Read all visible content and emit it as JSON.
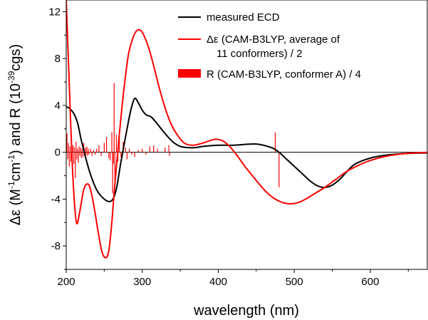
{
  "chart_data": {
    "type": "line",
    "title": "",
    "xlabel": "wavelength (nm)",
    "ylabel_parts": [
      "Δε (M",
      "-1",
      "cm",
      "-1",
      ") and R (10",
      "-39",
      "cgs)"
    ],
    "xlim": [
      200,
      675
    ],
    "ylim": [
      -10,
      13
    ],
    "x_ticks": [
      200,
      300,
      400,
      500,
      600
    ],
    "y_ticks": [
      -8,
      -4,
      0,
      4,
      8,
      12
    ],
    "grid": false,
    "legend_position": "top-right",
    "legend": [
      {
        "label": "measured ECD",
        "color": "#000000",
        "kind": "line"
      },
      {
        "label": "Δε (CAM-B3LYP, average of",
        "label2": "11 conformers) / 2",
        "color": "#ff0000",
        "kind": "line"
      },
      {
        "label": "R (CAM-B3LYP, conformer A) / 4",
        "color": "#ff0000",
        "kind": "bar"
      }
    ],
    "series": [
      {
        "name": "measured ECD",
        "color": "#000000",
        "x": [
          200,
          205,
          210,
          215,
          220,
          230,
          240,
          250,
          258,
          263,
          267,
          272,
          280,
          285,
          290,
          295,
          300,
          305,
          312,
          320,
          330,
          340,
          350,
          360,
          370,
          380,
          400,
          420,
          450,
          470,
          480,
          490,
          500,
          510,
          520,
          530,
          540,
          550,
          560,
          570,
          580,
          600,
          620,
          650,
          675
        ],
        "y": [
          3.9,
          3.7,
          3.3,
          2.5,
          1.0,
          -1.5,
          -3.2,
          -4.0,
          -4.2,
          -3.8,
          -2.8,
          -0.8,
          2.0,
          3.6,
          4.6,
          4.2,
          3.6,
          3.2,
          3.0,
          2.4,
          1.6,
          0.9,
          0.5,
          0.4,
          0.4,
          0.5,
          0.6,
          0.6,
          0.7,
          0.4,
          0.0,
          -0.6,
          -1.2,
          -1.8,
          -2.4,
          -2.85,
          -3.0,
          -2.8,
          -2.3,
          -1.6,
          -1.0,
          -0.5,
          -0.25,
          -0.1,
          -0.05
        ]
      },
      {
        "name": "Δε (CAM-B3LYP, average of 11 conformers) / 2",
        "color": "#ff0000",
        "x": [
          200,
          202,
          205,
          208,
          211,
          214,
          218,
          223,
          228,
          232,
          237,
          242,
          247,
          252,
          256,
          260,
          263,
          267,
          272,
          277,
          282,
          288,
          293,
          298,
          302,
          308,
          315,
          322,
          330,
          338,
          346,
          355,
          365,
          375,
          385,
          395,
          405,
          415,
          425,
          435,
          445,
          455,
          465,
          475,
          485,
          495,
          505,
          515,
          525,
          540,
          555,
          570,
          585,
          600,
          620,
          640,
          660,
          675
        ],
        "y": [
          13.0,
          9.5,
          4.0,
          -1.0,
          -4.5,
          -6.1,
          -5.0,
          -3.2,
          -2.7,
          -3.2,
          -4.8,
          -6.8,
          -8.5,
          -9.0,
          -8.4,
          -6.0,
          -3.5,
          -0.5,
          3.0,
          6.0,
          8.4,
          9.8,
          10.4,
          10.4,
          10.0,
          9.0,
          7.4,
          5.6,
          3.8,
          2.4,
          1.5,
          0.8,
          0.6,
          0.7,
          0.9,
          1.1,
          1.0,
          0.5,
          -0.3,
          -1.2,
          -2.0,
          -2.8,
          -3.5,
          -4.0,
          -4.3,
          -4.4,
          -4.3,
          -4.0,
          -3.6,
          -3.0,
          -2.3,
          -1.6,
          -1.1,
          -0.7,
          -0.35,
          -0.15,
          -0.05,
          0.0
        ]
      }
    ],
    "sticks": {
      "name": "R (CAM-B3LYP, conformer A) / 4",
      "color": "#ff0000",
      "x": [
        201,
        202,
        203,
        204,
        205,
        206,
        207,
        208,
        209,
        210,
        211,
        212,
        213,
        214,
        215,
        216,
        217,
        218,
        219,
        220,
        221,
        222,
        223,
        224,
        225,
        226,
        227,
        228,
        229,
        230,
        232,
        234,
        236,
        238,
        240,
        243,
        246,
        250,
        253,
        256,
        258,
        260,
        261,
        262,
        263,
        264,
        266,
        268,
        270,
        272,
        275,
        278,
        280,
        283,
        286,
        290,
        295,
        300,
        305,
        310,
        315,
        320,
        330,
        335,
        336,
        475,
        480
      ],
      "y": [
        1.6,
        -0.6,
        0.8,
        -1.2,
        0.5,
        -0.8,
        1.2,
        -0.5,
        0.6,
        -1.0,
        0.4,
        -2.2,
        0.9,
        -0.6,
        0.3,
        -0.9,
        0.5,
        -0.3,
        0.4,
        -0.5,
        0.3,
        -0.4,
        0.8,
        -0.3,
        0.4,
        -0.2,
        0.5,
        -0.3,
        0.3,
        -0.2,
        0.3,
        -0.3,
        0.2,
        -0.2,
        0.3,
        0.6,
        -0.3,
        0.8,
        1.3,
        -0.5,
        -0.7,
        1.7,
        -3.5,
        -1.0,
        5.9,
        -2.5,
        1.5,
        -0.8,
        1.4,
        -0.4,
        0.9,
        0.4,
        -0.6,
        0.3,
        -0.2,
        -0.4,
        0.2,
        0.3,
        -0.2,
        0.5,
        0.6,
        0.3,
        0.4,
        0.6,
        -0.3,
        1.7,
        -3.0
      ]
    }
  }
}
